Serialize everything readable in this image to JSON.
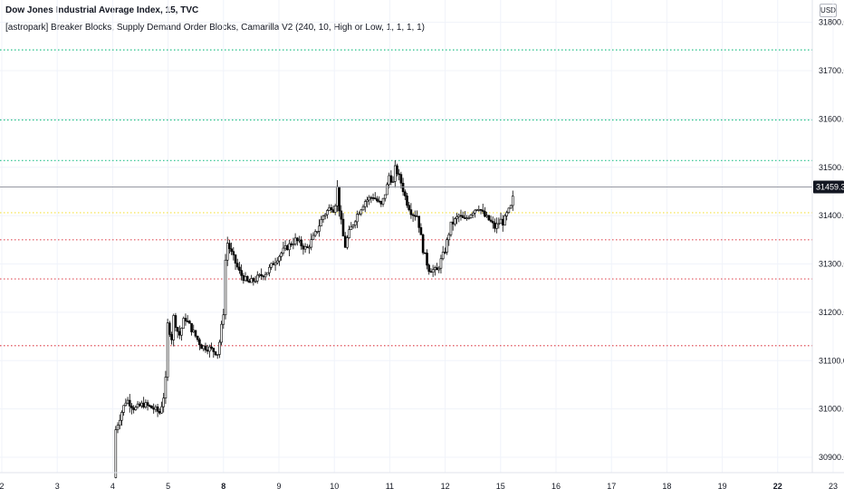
{
  "header": {
    "symbol_title": "Dow Jones Industrial Average Index, 15, TVC",
    "indicator": "[astropark] Breaker Blocks, Supply Demand Order Blocks, Camarilla V2 (240, 10, High or Low, 1, 1, 1, 1)",
    "currency": "USD"
  },
  "colors": {
    "background": "#ffffff",
    "candle": "#000000",
    "grid": "#f0f3fa",
    "axis_text": "#131722",
    "last_price_bg": "#131722",
    "last_price_line": "#9598a1",
    "level_green": "#26c08a",
    "level_yellow": "#f5e142",
    "level_red": "#e0505a"
  },
  "chart_data": {
    "type": "candlestick",
    "title": "",
    "xlabel": "",
    "ylabel": "",
    "ylim": [
      30850,
      31830
    ],
    "x_ticks": [
      {
        "label": "2",
        "t": 0,
        "bold": false
      },
      {
        "label": "3",
        "t": 1,
        "bold": false
      },
      {
        "label": "4",
        "t": 2,
        "bold": false
      },
      {
        "label": "5",
        "t": 3,
        "bold": false
      },
      {
        "label": "8",
        "t": 4,
        "bold": true
      },
      {
        "label": "9",
        "t": 5,
        "bold": false
      },
      {
        "label": "10",
        "t": 6,
        "bold": false
      },
      {
        "label": "11",
        "t": 7,
        "bold": false
      },
      {
        "label": "12",
        "t": 8,
        "bold": false
      },
      {
        "label": "15",
        "t": 9,
        "bold": false
      },
      {
        "label": "16",
        "t": 10,
        "bold": false
      },
      {
        "label": "17",
        "t": 11,
        "bold": false
      },
      {
        "label": "18",
        "t": 12,
        "bold": false
      },
      {
        "label": "19",
        "t": 13,
        "bold": false
      },
      {
        "label": "22",
        "t": 14,
        "bold": true
      },
      {
        "label": "23",
        "t": 15,
        "bold": false
      }
    ],
    "y_ticks": [
      30900.0,
      31000.0,
      31100.0,
      31200.0,
      31300.0,
      31400.0,
      31500.0,
      31600.0,
      31700.0,
      31800.0
    ],
    "y_tick_labels": [
      "30900.0",
      "31000.0",
      "31100.0",
      "31200.0",
      "31300.0",
      "31400.0",
      "31500.0",
      "31600.0",
      "31700.0",
      "31800.0"
    ],
    "last_price": 31459.3,
    "last_price_label": "31459.3",
    "levels": [
      {
        "value": 31743,
        "color": "green"
      },
      {
        "value": 31598,
        "color": "green"
      },
      {
        "value": 31514,
        "color": "green"
      },
      {
        "value": 31406,
        "color": "yellow"
      },
      {
        "value": 31350,
        "color": "red"
      },
      {
        "value": 31269,
        "color": "red"
      },
      {
        "value": 31131,
        "color": "red"
      }
    ],
    "price_path": [
      [
        2.02,
        30858
      ],
      [
        2.05,
        30955
      ],
      [
        2.15,
        30990
      ],
      [
        2.25,
        31020
      ],
      [
        2.4,
        31000
      ],
      [
        2.55,
        31010
      ],
      [
        2.75,
        31000
      ],
      [
        2.85,
        30992
      ],
      [
        2.95,
        31040
      ],
      [
        3.0,
        31200
      ],
      [
        3.05,
        31130
      ],
      [
        3.1,
        31190
      ],
      [
        3.2,
        31150
      ],
      [
        3.3,
        31190
      ],
      [
        3.45,
        31160
      ],
      [
        3.6,
        31130
      ],
      [
        3.75,
        31125
      ],
      [
        3.9,
        31115
      ],
      [
        4.0,
        31200
      ],
      [
        4.05,
        31350
      ],
      [
        4.15,
        31320
      ],
      [
        4.3,
        31280
      ],
      [
        4.45,
        31260
      ],
      [
        4.6,
        31270
      ],
      [
        4.8,
        31285
      ],
      [
        4.95,
        31310
      ],
      [
        5.1,
        31330
      ],
      [
        5.3,
        31350
      ],
      [
        5.5,
        31330
      ],
      [
        5.65,
        31360
      ],
      [
        5.8,
        31400
      ],
      [
        5.95,
        31420
      ],
      [
        6.0,
        31410
      ],
      [
        6.05,
        31460
      ],
      [
        6.1,
        31400
      ],
      [
        6.15,
        31370
      ],
      [
        6.18,
        31330
      ],
      [
        6.25,
        31360
      ],
      [
        6.4,
        31400
      ],
      [
        6.55,
        31430
      ],
      [
        6.7,
        31440
      ],
      [
        6.85,
        31420
      ],
      [
        6.95,
        31460
      ],
      [
        7.0,
        31490
      ],
      [
        7.05,
        31460
      ],
      [
        7.1,
        31500
      ],
      [
        7.2,
        31470
      ],
      [
        7.3,
        31430
      ],
      [
        7.4,
        31405
      ],
      [
        7.5,
        31400
      ],
      [
        7.6,
        31330
      ],
      [
        7.7,
        31290
      ],
      [
        7.85,
        31285
      ],
      [
        8.0,
        31330
      ],
      [
        8.1,
        31380
      ],
      [
        8.25,
        31400
      ],
      [
        8.35,
        31390
      ],
      [
        8.5,
        31410
      ],
      [
        8.6,
        31420
      ],
      [
        8.7,
        31400
      ],
      [
        8.8,
        31390
      ],
      [
        8.9,
        31375
      ],
      [
        9.0,
        31390
      ],
      [
        9.05,
        31385
      ],
      [
        9.1,
        31400
      ],
      [
        9.2,
        31420
      ],
      [
        9.25,
        31459
      ]
    ]
  }
}
